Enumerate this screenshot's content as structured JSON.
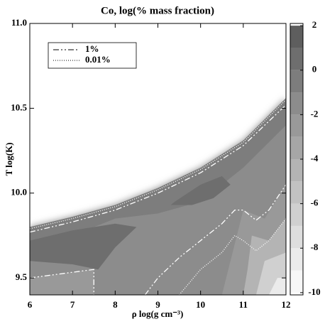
{
  "chart_data": {
    "type": "contour",
    "title": "Co, log(% mass fraction)",
    "xlabel": "ρ   log(g cm⁻³)",
    "ylabel": "T   log(K)",
    "xlim": [
      6,
      12
    ],
    "xticks": [
      6,
      7,
      8,
      9,
      10,
      11,
      12
    ],
    "ylim": [
      9.4,
      11.0
    ],
    "yticks": [
      9.5,
      {
        "value": 10.0,
        "label": "10.0"
      },
      {
        "value": 10.5,
        "label": "10.5"
      },
      {
        "value": 11.0,
        "label": "11.0"
      }
    ],
    "colorbar": {
      "lim": [
        -10.1,
        2.1
      ],
      "ticks": [
        2,
        0,
        -2,
        -4,
        -6,
        -8,
        -10
      ],
      "levels": [
        -10,
        -9,
        -8,
        -7,
        -6,
        -5,
        -4,
        -3,
        -2,
        -1,
        0,
        1
      ],
      "colors": [
        "#f7f7f7",
        "#ebebeb",
        "#dedede",
        "#d0d0d0",
        "#c2c2c2",
        "#b4b4b4",
        "#a6a6a6",
        "#999999",
        "#8c8c8c",
        "#7d7d7d",
        "#6e6e6e",
        "#5e5e5e"
      ]
    },
    "regions": [
      {
        "level": -2,
        "x": [
          6,
          7,
          8,
          9,
          10,
          11,
          12,
          12,
          6
        ],
        "y": [
          9.8,
          9.86,
          9.93,
          10.03,
          10.15,
          10.31,
          10.56,
          9.4,
          9.4
        ]
      },
      {
        "level": -1,
        "x": [
          6,
          7,
          8,
          9,
          10,
          11,
          12,
          12,
          11,
          10,
          9,
          8,
          7,
          6
        ],
        "y": [
          9.8,
          9.86,
          9.93,
          10.03,
          10.15,
          10.31,
          10.56,
          10.4,
          10.15,
          9.95,
          9.88,
          9.85,
          9.75,
          9.6
        ]
      },
      {
        "level": 0,
        "x": [
          9.4,
          10,
          10.5,
          10.7,
          10.3,
          9.8,
          9.3
        ],
        "y": [
          9.95,
          10.05,
          10.1,
          10.05,
          9.97,
          9.93,
          9.93
        ]
      },
      {
        "level": 0,
        "x": [
          6,
          7,
          8,
          8.5,
          8,
          7.6,
          7,
          6
        ],
        "y": [
          9.72,
          9.78,
          9.82,
          9.8,
          9.68,
          9.55,
          9.58,
          9.6
        ]
      },
      {
        "level": -3,
        "x": [
          11,
          11.5,
          12,
          12,
          10.5,
          10.8
        ],
        "y": [
          9.9,
          9.85,
          10.05,
          9.4,
          9.4,
          9.7
        ]
      },
      {
        "level": -5,
        "x": [
          11.2,
          11.6,
          12,
          12,
          11,
          11.1
        ],
        "y": [
          9.75,
          9.72,
          9.85,
          9.4,
          9.4,
          9.55
        ]
      },
      {
        "level": -7,
        "x": [
          11.5,
          12,
          12,
          11.3
        ],
        "y": [
          9.6,
          9.65,
          9.4,
          9.4
        ]
      },
      {
        "level": -9,
        "x": [
          11.8,
          12,
          12,
          11.6
        ],
        "y": [
          9.5,
          9.5,
          9.4,
          9.4
        ]
      },
      {
        "level": -3,
        "x": [
          6,
          7.5,
          7.5,
          6
        ],
        "y": [
          9.5,
          9.55,
          9.4,
          9.4
        ]
      }
    ],
    "series": [
      {
        "name": "1%",
        "color": "#ffffff",
        "dash": "8 3 2 3 2 3",
        "x": [
          6,
          7,
          8,
          9,
          10,
          11,
          12,
          null,
          8.7,
          9,
          9.5,
          10,
          10.5,
          10.8,
          11,
          11.3,
          11.6,
          12,
          null,
          6,
          7.5,
          7.5
        ],
        "y": [
          9.77,
          9.83,
          9.9,
          10.0,
          10.12,
          10.28,
          10.52,
          null,
          9.4,
          9.5,
          9.62,
          9.72,
          9.82,
          9.9,
          9.9,
          9.84,
          9.9,
          10.05,
          null,
          9.5,
          9.55,
          9.4
        ]
      },
      {
        "name": "0.01%",
        "color": "#ffffff",
        "dash": "1 2",
        "x": [
          6,
          7,
          8,
          9,
          10,
          11,
          12,
          null,
          9.5,
          10,
          10.5,
          10.8,
          11,
          11.3,
          11.6,
          12
        ],
        "y": [
          9.79,
          9.85,
          9.92,
          10.02,
          10.14,
          10.3,
          10.55,
          null,
          9.4,
          9.55,
          9.65,
          9.75,
          9.72,
          9.66,
          9.72,
          9.85
        ]
      }
    ]
  }
}
